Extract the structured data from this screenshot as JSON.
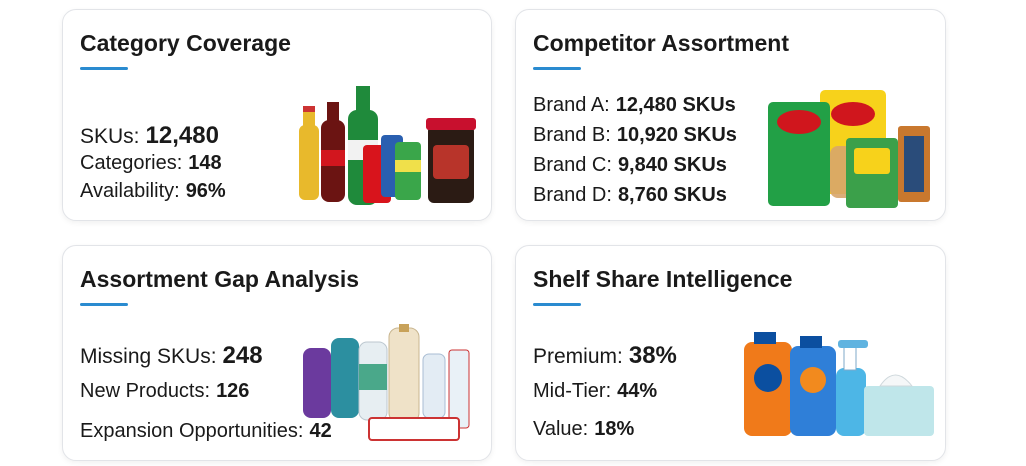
{
  "cards": [
    {
      "title": "Category Coverage",
      "items": [
        {
          "label": "SKUs:",
          "value": "12,480"
        },
        {
          "label": "Categories:",
          "value": "148"
        },
        {
          "label": "Availability:",
          "value": "96%"
        }
      ]
    },
    {
      "title": "Competitor Assortment",
      "items": [
        {
          "label": "Brand A:",
          "value": "12,480 SKUs"
        },
        {
          "label": "Brand B:",
          "value": "10,920 SKUs"
        },
        {
          "label": "Brand C:",
          "value": "9,840 SKUs"
        },
        {
          "label": "Brand D:",
          "value": "8,760 SKUs"
        }
      ]
    },
    {
      "title": "Assortment Gap Analysis",
      "items": [
        {
          "label": "Missing SKUs:",
          "value": "248"
        },
        {
          "label": "New Products:",
          "value": "126"
        },
        {
          "label": "Expansion Opportunities:",
          "value": "42"
        }
      ]
    },
    {
      "title": "Shelf Share Intelligence",
      "items": [
        {
          "label": "Premium:",
          "value": "38%"
        },
        {
          "label": "Mid-Tier:",
          "value": "44%"
        },
        {
          "label": "Value:",
          "value": "18%"
        }
      ]
    }
  ]
}
